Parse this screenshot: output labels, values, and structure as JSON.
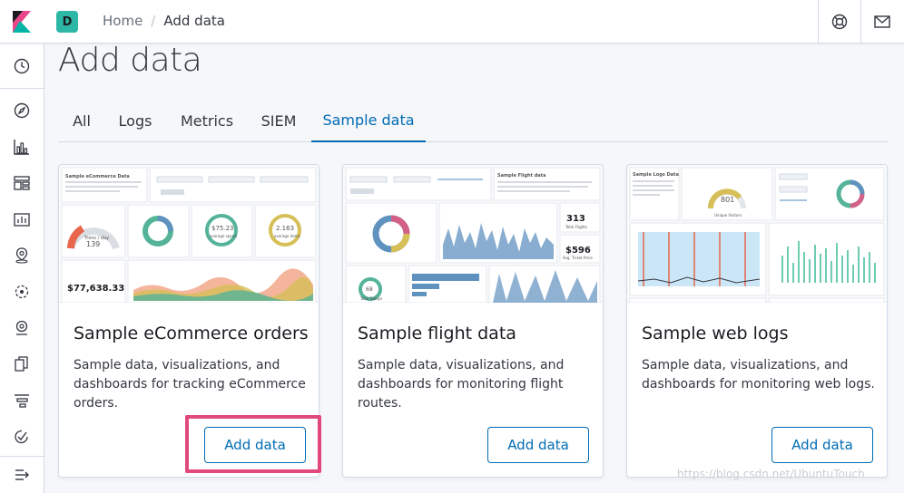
{
  "header": {
    "space_initial": "D",
    "breadcrumbs": {
      "home": "Home",
      "separator": "/",
      "current": "Add data"
    }
  },
  "page": {
    "title": "Add data"
  },
  "tabs": [
    {
      "label": "All"
    },
    {
      "label": "Logs"
    },
    {
      "label": "Metrics"
    },
    {
      "label": "SIEM"
    },
    {
      "label": "Sample data",
      "active": true
    }
  ],
  "cards": [
    {
      "title": "Sample eCommerce orders",
      "description": "Sample data, visualizations, and dashboards for tracking eCommerce orders.",
      "button": "Add data",
      "thumb": {
        "heading": "Sample eCommerce Data",
        "gauge_value": "139",
        "gauge_caption": "Trxns / day",
        "donut_value": "$75.23",
        "donut_caption": "average spend",
        "donut2_value": "2.163",
        "donut2_caption": "average items",
        "total": "$77,638.33"
      }
    },
    {
      "title": "Sample flight data",
      "description": "Sample data, visualizations, and dashboards for monitoring flight routes.",
      "button": "Add data",
      "thumb": {
        "heading": "Sample Flight data",
        "metric1": "313",
        "metric1_caption": "Total Flights",
        "metric2": "$596",
        "metric2_caption": "Avg. Ticket Price",
        "donut_value": "68",
        "donut_caption": "Total Delays"
      }
    },
    {
      "title": "Sample web logs",
      "description": "Sample data, visualizations, and dashboards for monitoring web logs.",
      "button": "Add data",
      "thumb": {
        "heading": "Sample Logs Data",
        "gauge_value": "801",
        "gauge_caption": "Unique Visitors"
      }
    }
  ],
  "watermark": "https://blog.csdn.net/UbuntuTouch",
  "colors": {
    "accent": "#006bb4",
    "highlight": "#e1497b",
    "space": "#2db8a6"
  }
}
